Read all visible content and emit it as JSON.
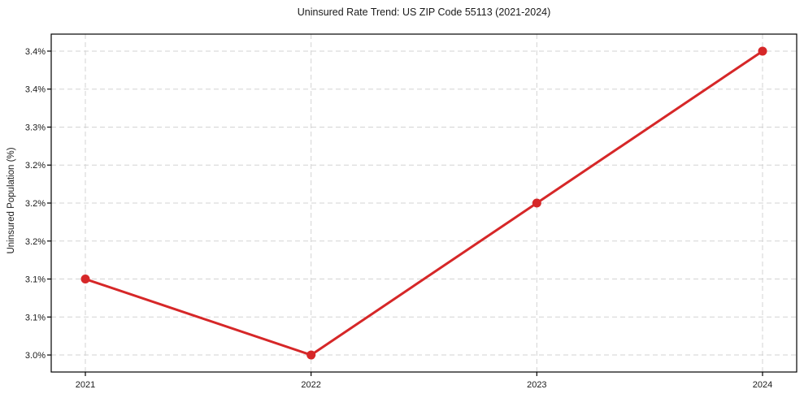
{
  "chart_data": {
    "type": "line",
    "title": "Uninsured Rate Trend: US ZIP Code 55113 (2021-2024)",
    "xlabel": "",
    "ylabel": "Uninsured Population (%)",
    "categories": [
      "2021",
      "2022",
      "2023",
      "2024"
    ],
    "series": [
      {
        "name": "Uninsured rate",
        "values": [
          3.1,
          3.0,
          3.2,
          3.4
        ],
        "unit": "%",
        "color": "#d62728",
        "marker": "circle",
        "line_width": 3
      }
    ],
    "x_tick_labels": [
      "2021",
      "2022",
      "2023",
      "2024"
    ],
    "y_tick_values": [
      3.0,
      3.05,
      3.1,
      3.15,
      3.2,
      3.25,
      3.3,
      3.35,
      3.4
    ],
    "y_tick_labels": [
      "3.0%",
      "3.1%",
      "3.1%",
      "3.2%",
      "3.2%",
      "3.2%",
      "3.3%",
      "3.4%",
      "3.4%"
    ],
    "ylim": [
      2.9776,
      3.4224
    ],
    "grid": true,
    "grid_style": "dashed",
    "grid_color": "#d3d3d3",
    "axes_color": "#000000",
    "background": "#ffffff",
    "legend": "none"
  }
}
